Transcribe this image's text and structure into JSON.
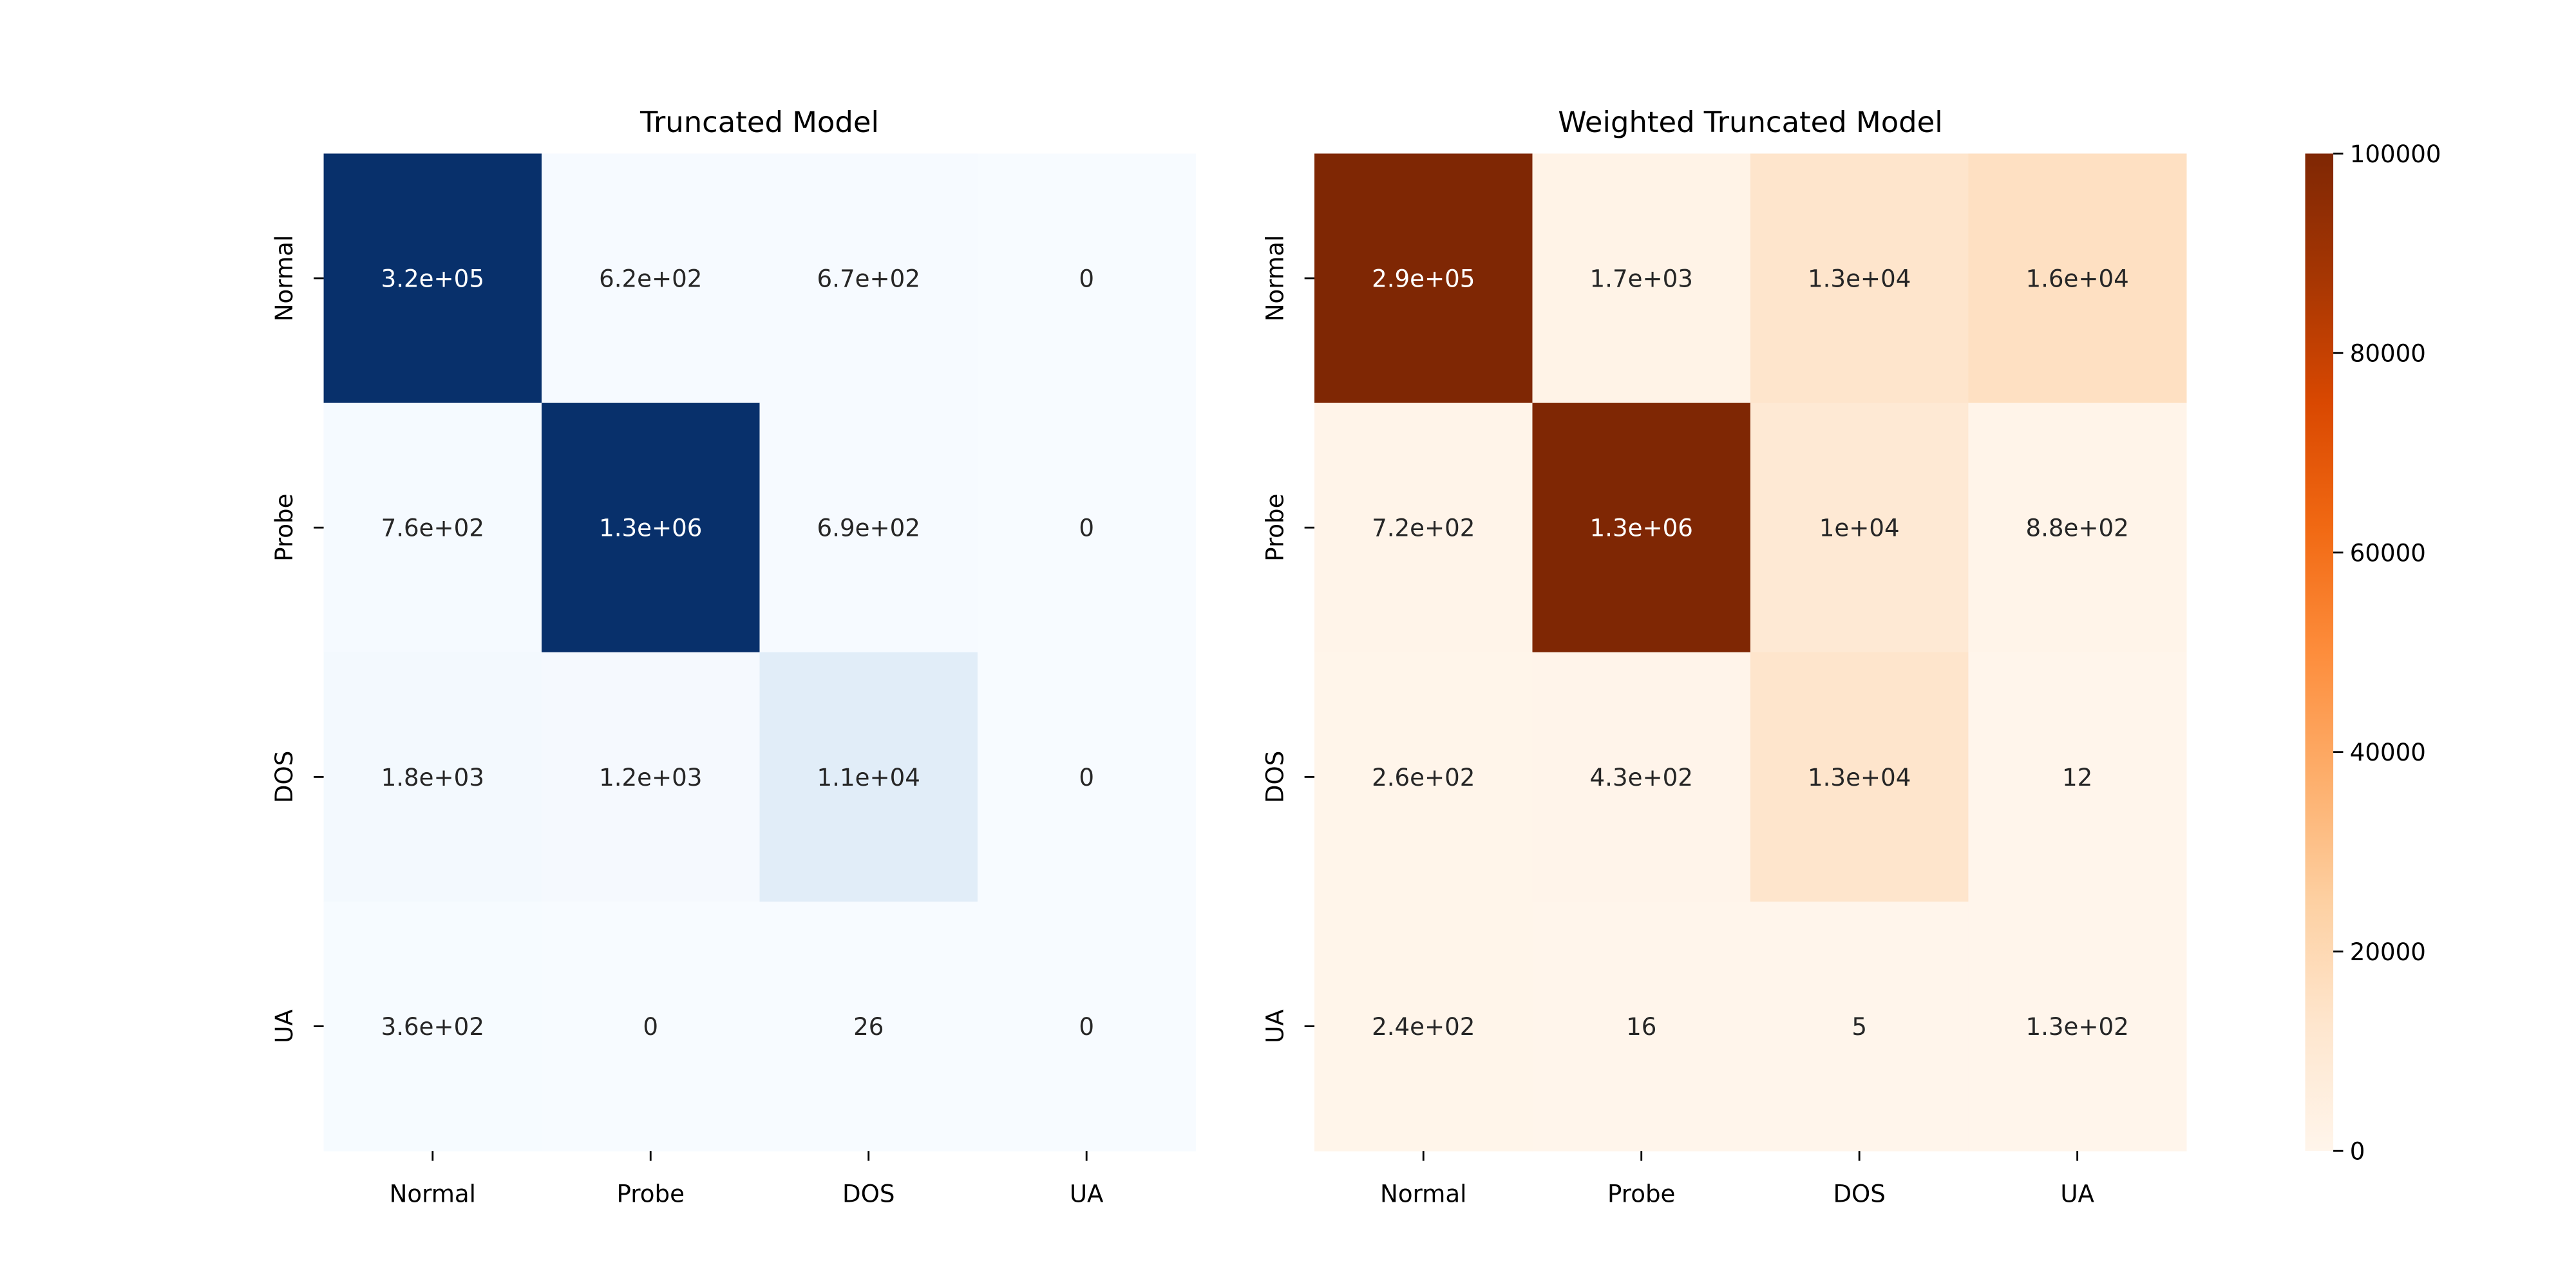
{
  "chart_data": [
    {
      "type": "heatmap",
      "title": "Truncated Model",
      "x_categories": [
        "Normal",
        "Probe",
        "DOS",
        "UA"
      ],
      "y_categories": [
        "Normal",
        "Probe",
        "DOS",
        "UA"
      ],
      "values": [
        [
          320000,
          620,
          670,
          0
        ],
        [
          760,
          1300000,
          690,
          0
        ],
        [
          1800,
          1200,
          11000,
          0
        ],
        [
          360,
          0,
          26,
          0
        ]
      ],
      "labels": [
        [
          "3.2e+05",
          "6.2e+02",
          "6.7e+02",
          "0"
        ],
        [
          "7.6e+02",
          "1.3e+06",
          "6.9e+02",
          "0"
        ],
        [
          "1.8e+03",
          "1.2e+03",
          "1.1e+04",
          "0"
        ],
        [
          "3.6e+02",
          "0",
          "26",
          "0"
        ]
      ],
      "colormap": "Blues",
      "vmin": 0,
      "vmax": 100000,
      "colorbar": false
    },
    {
      "type": "heatmap",
      "title": "Weighted Truncated Model",
      "x_categories": [
        "Normal",
        "Probe",
        "DOS",
        "UA"
      ],
      "y_categories": [
        "Normal",
        "Probe",
        "DOS",
        "UA"
      ],
      "values": [
        [
          290000,
          1700,
          13000,
          16000
        ],
        [
          720,
          1300000,
          10000,
          880
        ],
        [
          260,
          430,
          13000,
          12
        ],
        [
          240,
          16,
          5,
          130
        ]
      ],
      "labels": [
        [
          "2.9e+05",
          "1.7e+03",
          "1.3e+04",
          "1.6e+04"
        ],
        [
          "7.2e+02",
          "1.3e+06",
          "1e+04",
          "8.8e+02"
        ],
        [
          "2.6e+02",
          "4.3e+02",
          "1.3e+04",
          "12"
        ],
        [
          "2.4e+02",
          "16",
          "5",
          "1.3e+02"
        ]
      ],
      "colormap": "Oranges",
      "vmin": 0,
      "vmax": 100000,
      "colorbar": true,
      "colorbar_ticks": [
        0,
        20000,
        40000,
        60000,
        80000,
        100000
      ]
    }
  ]
}
